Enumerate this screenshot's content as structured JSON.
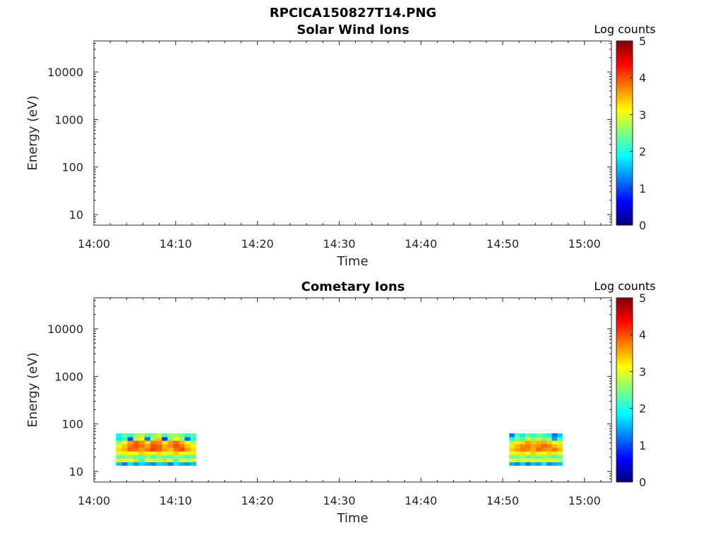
{
  "figure": {
    "title": "RPCICA150827T14.PNG"
  },
  "colors": {
    "axis": "#262626",
    "background": "#ffffff",
    "colormap": [
      "#00007f",
      "#0000ff",
      "#007fff",
      "#00ffff",
      "#7fff7f",
      "#ffff00",
      "#ff7f00",
      "#ff0000",
      "#7f0000"
    ]
  },
  "chart_data": [
    {
      "type": "heatmap",
      "title": "Solar Wind Ions",
      "xlabel": "Time",
      "ylabel": "Energy (eV)",
      "x_ticks": [
        "14:00",
        "14:10",
        "14:20",
        "14:30",
        "14:40",
        "14:50",
        "15:00"
      ],
      "xlim_minutes": [
        0,
        63.3
      ],
      "y_scale": "log",
      "y_ticks": [
        10,
        100,
        1000,
        10000
      ],
      "y_tick_labels": [
        "10",
        "100",
        "1000",
        "10000"
      ],
      "ylim": [
        6,
        45000
      ],
      "colorbar": {
        "label": "Log counts",
        "range": [
          0,
          5
        ],
        "ticks": [
          "0",
          "1",
          "2",
          "3",
          "4",
          "5"
        ]
      },
      "blocks": []
    },
    {
      "type": "heatmap",
      "title": "Cometary Ions",
      "xlabel": "Time",
      "ylabel": "Energy (eV)",
      "x_ticks": [
        "14:00",
        "14:10",
        "14:20",
        "14:30",
        "14:40",
        "14:50",
        "15:00"
      ],
      "xlim_minutes": [
        0,
        63.3
      ],
      "y_scale": "log",
      "y_ticks": [
        10,
        100,
        1000,
        10000
      ],
      "y_tick_labels": [
        "10",
        "100",
        "1000",
        "10000"
      ],
      "ylim": [
        6,
        45000
      ],
      "colorbar": {
        "label": "Log counts",
        "range": [
          0,
          5
        ],
        "ticks": [
          "0",
          "1",
          "2",
          "3",
          "4",
          "5"
        ]
      },
      "blocks": [
        {
          "t_start_min": 2.7,
          "t_end_min": 12.5,
          "energy_bins_eV": [
            13.3,
            15.8,
            18.8,
            22.4,
            26.6,
            31.6,
            37.6,
            44.7,
            53.2
          ],
          "log_counts": [
            [
              1.6,
              1.2,
              1.8,
              1.4,
              1.7,
              1.5,
              1.3,
              1.7,
              1.6,
              1.2,
              1.8,
              1.5,
              1.4,
              1.6
            ],
            [
              3.2,
              3.0,
              3.1,
              3.3,
              2.2,
              3.1,
              3.2,
              2.9,
              3.3,
              3.0,
              2.3,
              3.2,
              2.8,
              3.0
            ],
            [
              2.3,
              2.5,
              2.6,
              2.4,
              2.3,
              2.6,
              2.2,
              2.5,
              2.4,
              2.3,
              2.6,
              2.5,
              2.2,
              2.4
            ],
            [
              3.0,
              3.2,
              3.1,
              3.0,
              3.4,
              3.2,
              3.1,
              3.3,
              3.0,
              3.2,
              3.4,
              3.1,
              3.0,
              3.2
            ],
            [
              3.3,
              3.5,
              3.9,
              3.8,
              3.6,
              3.8,
              4.1,
              3.9,
              3.6,
              3.4,
              3.8,
              4.0,
              3.6,
              3.3
            ],
            [
              3.0,
              3.4,
              3.8,
              4.0,
              3.8,
              3.6,
              4.0,
              3.9,
              3.5,
              3.7,
              4.0,
              3.8,
              3.4,
              3.1
            ],
            [
              2.6,
              3.1,
              3.6,
              3.9,
              3.7,
              3.3,
              3.8,
              3.7,
              3.2,
              3.6,
              3.9,
              3.5,
              3.0,
              2.7
            ],
            [
              1.8,
              2.2,
              1.0,
              2.8,
              3.2,
              1.2,
              2.7,
              3.4,
              0.9,
              2.4,
              3.1,
              2.6,
              1.1,
              2.0
            ],
            [
              1.9,
              2.4,
              2.1,
              2.6,
              2.8,
              2.3,
              2.5,
              2.9,
              2.2,
              2.6,
              2.7,
              2.4,
              2.1,
              2.3
            ]
          ]
        },
        {
          "t_start_min": 50.8,
          "t_end_min": 57.3,
          "energy_bins_eV": [
            13.3,
            15.8,
            18.8,
            22.4,
            26.6,
            31.6,
            37.6,
            44.7,
            53.2
          ],
          "log_counts": [
            [
              1.5,
              1.3,
              1.7,
              1.2,
              1.6,
              1.4,
              1.8,
              1.3,
              1.5,
              1.6
            ],
            [
              3.1,
              2.9,
              3.0,
              3.2,
              3.0,
              2.9,
              3.1,
              3.0,
              3.2,
              2.8
            ],
            [
              2.4,
              2.5,
              2.6,
              2.3,
              2.5,
              2.4,
              2.6,
              2.5,
              2.3,
              2.4
            ],
            [
              3.1,
              3.2,
              3.3,
              3.1,
              3.4,
              3.2,
              3.0,
              3.3,
              3.2,
              3.1
            ],
            [
              3.4,
              3.6,
              3.8,
              3.7,
              3.5,
              3.9,
              3.7,
              3.6,
              3.8,
              3.5
            ],
            [
              3.2,
              3.5,
              3.7,
              3.8,
              3.6,
              3.7,
              3.9,
              3.8,
              3.5,
              3.3
            ],
            [
              2.8,
              3.2,
              3.3,
              3.6,
              3.4,
              3.5,
              3.6,
              3.4,
              3.0,
              2.9
            ],
            [
              1.9,
              2.6,
              2.1,
              2.9,
              2.5,
              2.8,
              2.4,
              2.7,
              1.4,
              2.1
            ],
            [
              1.2,
              2.2,
              1.8,
              2.4,
              2.0,
              2.5,
              2.2,
              1.9,
              1.1,
              1.6
            ]
          ]
        }
      ]
    }
  ]
}
